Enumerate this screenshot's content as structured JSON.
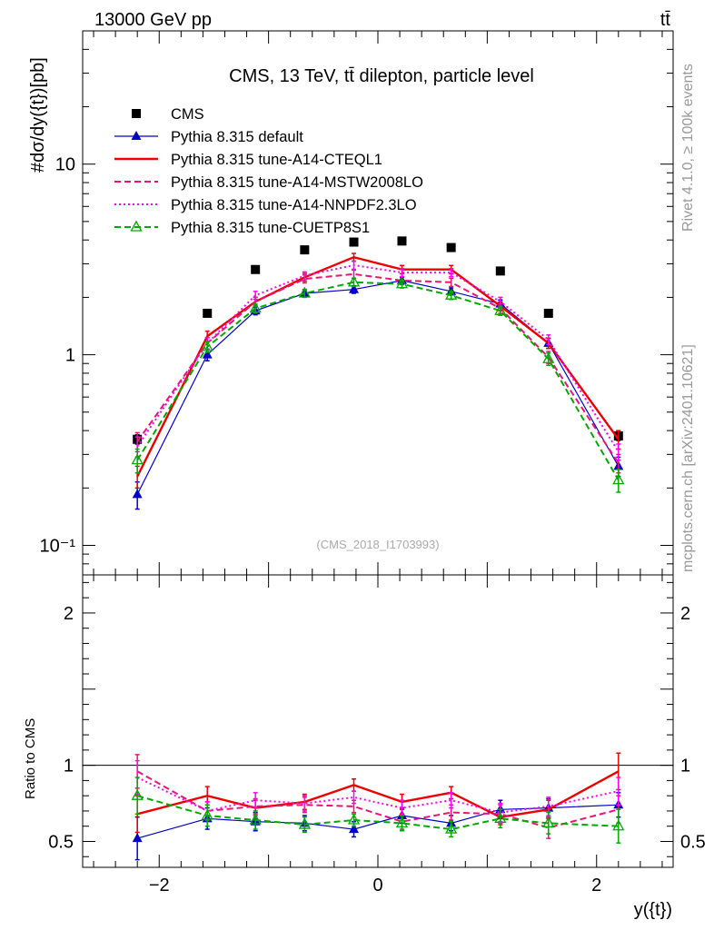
{
  "header": {
    "energy_label": "13000 GeV pp",
    "process_label": "tt̄"
  },
  "side_labels": {
    "rivet": "Rivet 4.1.0, ≥ 100k events",
    "mcplots": "mcplots.cern.ch [arXiv:2401.10621]"
  },
  "chart_data": [
    {
      "type": "line",
      "scale": "log",
      "title": "CMS, 13 TeV, tt̄ dilepton, particle level",
      "ylabel": "#dσ/dy({t})[pb]",
      "xlabel": "y({t})",
      "xlim": [
        -2.7,
        2.7
      ],
      "ylim": [
        0.07,
        50
      ],
      "analysis_tag": "(CMS_2018_I1703993)",
      "y_ticks": [
        {
          "value": 0.1,
          "label": "10⁻¹"
        },
        {
          "value": 1,
          "label": "1"
        },
        {
          "value": 10,
          "label": "10"
        }
      ],
      "x": [
        -2.2,
        -1.56,
        -1.12,
        -0.67,
        -0.22,
        0.22,
        0.67,
        1.12,
        1.56,
        2.2
      ],
      "series": [
        {
          "name": "CMS",
          "color": "#000000",
          "style": "marker-square",
          "values": [
            0.36,
            1.65,
            2.8,
            3.55,
            3.9,
            3.95,
            3.65,
            2.75,
            1.65,
            0.375
          ],
          "errors": [
            0.02,
            0.05,
            0.07,
            0.08,
            0.08,
            0.08,
            0.08,
            0.07,
            0.05,
            0.02
          ]
        },
        {
          "name": "Pythia 8.315 default",
          "color": "#0000cc",
          "style": "solid-triangle",
          "values": [
            0.185,
            1.0,
            1.7,
            2.1,
            2.2,
            2.45,
            2.15,
            1.85,
            1.15,
            0.26
          ],
          "errors": [
            0.03,
            0.07,
            0.08,
            0.09,
            0.1,
            0.1,
            0.09,
            0.09,
            0.07,
            0.03
          ]
        },
        {
          "name": "Pythia 8.315 tune-A14-CTEQL1",
          "color": "#ee0000",
          "style": "solid",
          "values": [
            0.23,
            1.25,
            1.9,
            2.55,
            3.25,
            2.8,
            2.8,
            1.8,
            1.15,
            0.36
          ],
          "errors": [
            0.03,
            0.08,
            0.1,
            0.12,
            0.15,
            0.14,
            0.14,
            0.1,
            0.07,
            0.04
          ]
        },
        {
          "name": "Pythia 8.315 tune-A14-MSTW2008LO",
          "color": "#ee1177",
          "style": "dashed",
          "values": [
            0.35,
            1.15,
            1.9,
            2.5,
            2.65,
            2.45,
            2.4,
            1.75,
            0.97,
            0.27
          ],
          "errors": [
            0.04,
            0.08,
            0.1,
            0.12,
            0.13,
            0.12,
            0.12,
            0.1,
            0.07,
            0.03
          ]
        },
        {
          "name": "Pythia 8.315 tune-A14-NNPDF2.3LO",
          "color": "#ff00ff",
          "style": "dotted",
          "values": [
            0.33,
            1.15,
            2.05,
            2.6,
            2.95,
            2.7,
            2.7,
            1.9,
            1.2,
            0.31
          ],
          "errors": [
            0.04,
            0.08,
            0.1,
            0.12,
            0.14,
            0.13,
            0.13,
            0.1,
            0.07,
            0.03
          ]
        },
        {
          "name": "Pythia 8.315 tune-CUETP8S1",
          "color": "#00aa00",
          "style": "dashed-open-triangle",
          "values": [
            0.28,
            1.1,
            1.75,
            2.1,
            2.4,
            2.35,
            2.05,
            1.7,
            0.95,
            0.22
          ],
          "errors": [
            0.04,
            0.07,
            0.09,
            0.1,
            0.12,
            0.11,
            0.1,
            0.09,
            0.07,
            0.03
          ]
        }
      ]
    },
    {
      "type": "line",
      "title": "",
      "ylabel": "Ratio to CMS",
      "xlabel": "y({t})",
      "xlim": [
        -2.7,
        2.7
      ],
      "ylim": [
        0.33,
        2.25
      ],
      "reference_line": 1,
      "y_ticks": [
        {
          "value": 0.5,
          "label": "0.5"
        },
        {
          "value": 1,
          "label": "1"
        },
        {
          "value": 2,
          "label": "2"
        }
      ],
      "x_ticks": [
        {
          "value": -2,
          "label": "−2"
        },
        {
          "value": 0,
          "label": "0"
        },
        {
          "value": 2,
          "label": "2"
        }
      ],
      "x": [
        -2.2,
        -1.56,
        -1.12,
        -0.67,
        -0.22,
        0.22,
        0.67,
        1.12,
        1.56,
        2.2
      ],
      "series": [
        {
          "name": "Pythia 8.315 default",
          "color": "#0000cc",
          "style": "solid-triangle",
          "values": [
            0.52,
            0.65,
            0.63,
            0.62,
            0.58,
            0.67,
            0.62,
            0.71,
            0.72,
            0.74
          ],
          "errors": [
            0.14,
            0.07,
            0.06,
            0.05,
            0.05,
            0.05,
            0.05,
            0.06,
            0.06,
            0.08
          ]
        },
        {
          "name": "Pythia 8.315 tune-A14-CTEQL1",
          "color": "#ee0000",
          "style": "solid",
          "values": [
            0.68,
            0.8,
            0.72,
            0.76,
            0.87,
            0.76,
            0.82,
            0.66,
            0.71,
            0.96
          ],
          "errors": [
            0.12,
            0.06,
            0.05,
            0.05,
            0.04,
            0.05,
            0.04,
            0.05,
            0.06,
            0.12
          ]
        },
        {
          "name": "Pythia 8.315 tune-A14-MSTW2008LO",
          "color": "#ee1177",
          "style": "dashed",
          "values": [
            0.96,
            0.7,
            0.73,
            0.74,
            0.73,
            0.63,
            0.69,
            0.68,
            0.59,
            0.71
          ],
          "errors": [
            0.11,
            0.06,
            0.05,
            0.05,
            0.04,
            0.05,
            0.05,
            0.06,
            0.07,
            0.09
          ]
        },
        {
          "name": "Pythia 8.315 tune-A14-NNPDF2.3LO",
          "color": "#ff00ff",
          "style": "dotted",
          "values": [
            0.92,
            0.7,
            0.77,
            0.75,
            0.79,
            0.72,
            0.77,
            0.69,
            0.73,
            0.83
          ],
          "errors": [
            0.11,
            0.06,
            0.05,
            0.05,
            0.04,
            0.05,
            0.05,
            0.06,
            0.06,
            0.09
          ]
        },
        {
          "name": "Pythia 8.315 tune-CUETP8S1",
          "color": "#00aa00",
          "style": "dashed-open-triangle",
          "values": [
            0.8,
            0.67,
            0.64,
            0.61,
            0.64,
            0.62,
            0.58,
            0.65,
            0.62,
            0.6
          ],
          "errors": [
            0.12,
            0.07,
            0.06,
            0.05,
            0.04,
            0.05,
            0.05,
            0.06,
            0.07,
            0.11
          ]
        }
      ]
    }
  ]
}
